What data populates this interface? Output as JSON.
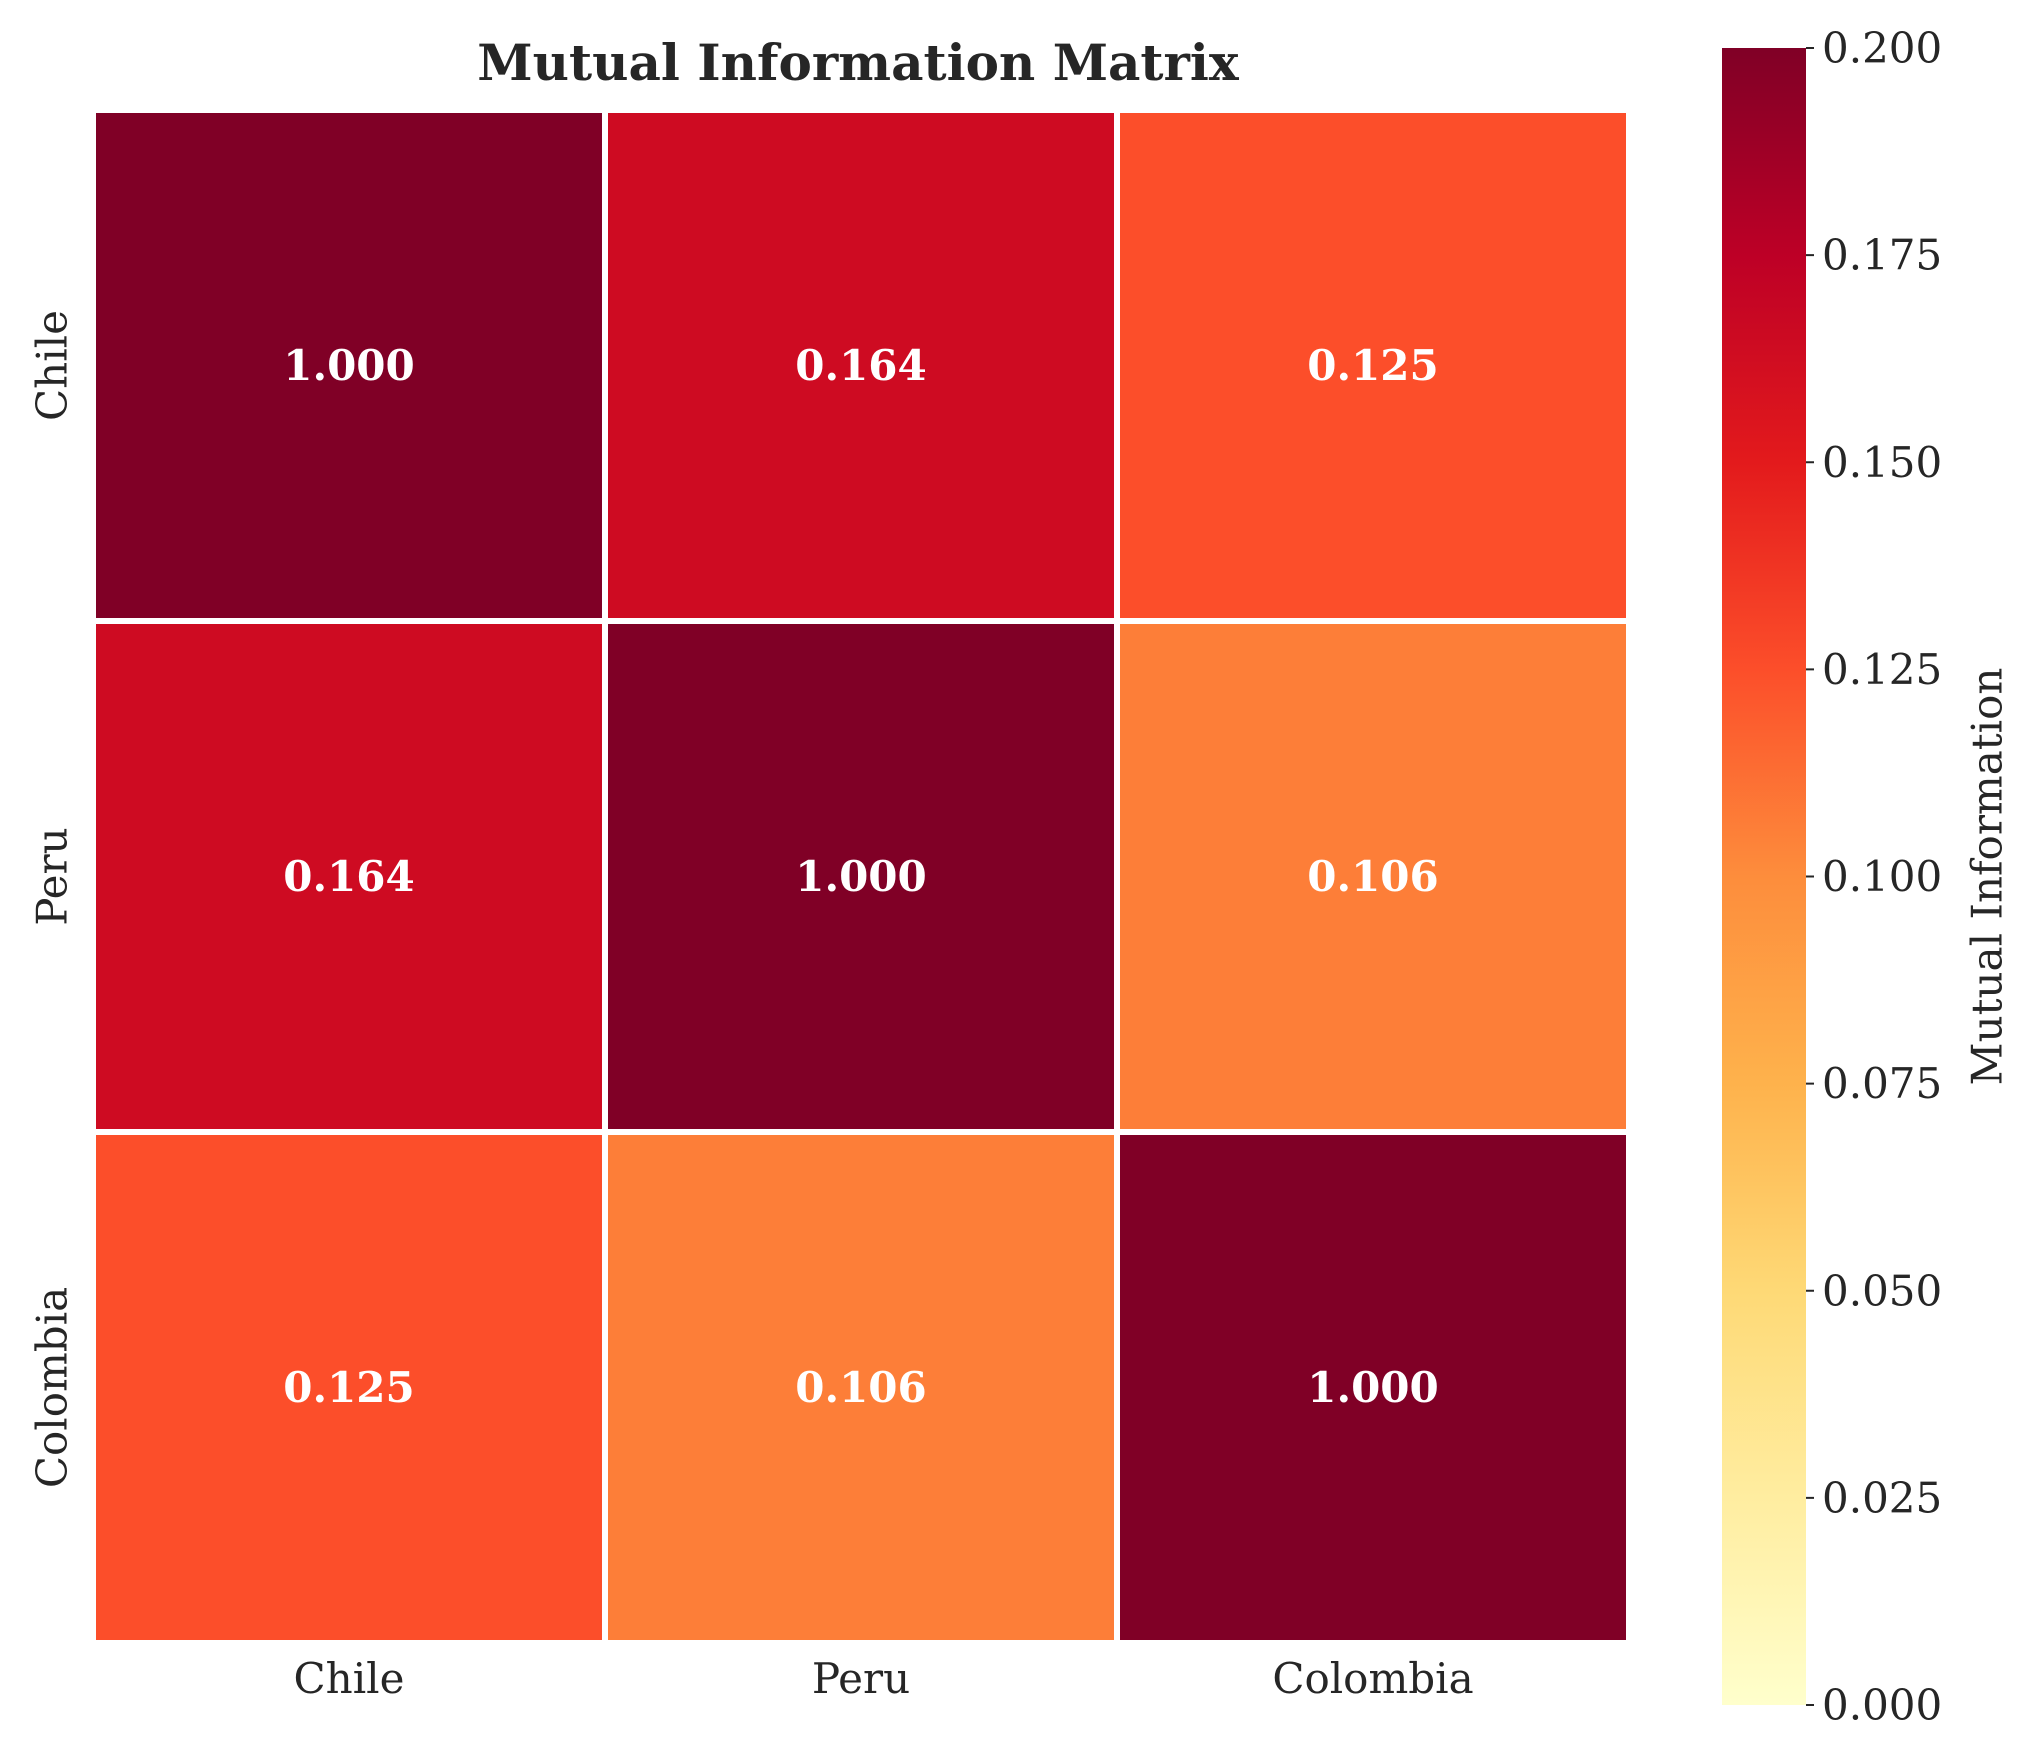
{
  "chart_data": {
    "type": "heatmap",
    "title": "Mutual Information Matrix",
    "x_labels": [
      "Chile",
      "Peru",
      "Colombia"
    ],
    "y_labels": [
      "Chile",
      "Peru",
      "Colombia"
    ],
    "values": [
      [
        1.0,
        0.164,
        0.125
      ],
      [
        0.164,
        1.0,
        0.106
      ],
      [
        0.125,
        0.106,
        1.0
      ]
    ],
    "annotations": [
      [
        "1.000",
        "0.164",
        "0.125"
      ],
      [
        "0.164",
        "1.000",
        "0.106"
      ],
      [
        "0.125",
        "0.106",
        "1.000"
      ]
    ],
    "colorbar": {
      "label": "Mutual Information",
      "range": [
        0.0,
        0.2
      ],
      "ticks": [
        "0.000",
        "0.025",
        "0.050",
        "0.075",
        "0.100",
        "0.125",
        "0.150",
        "0.175",
        "0.200"
      ],
      "colormap": "YlOrRd",
      "colormap_stops": [
        "#ffffcc",
        "#ffeda0",
        "#fed976",
        "#feb24c",
        "#fd8d3c",
        "#fc4e2a",
        "#e31a1c",
        "#bd0026",
        "#800026"
      ]
    },
    "cell_border_color": "#ffffff",
    "annotation_color": "#ffffff"
  }
}
